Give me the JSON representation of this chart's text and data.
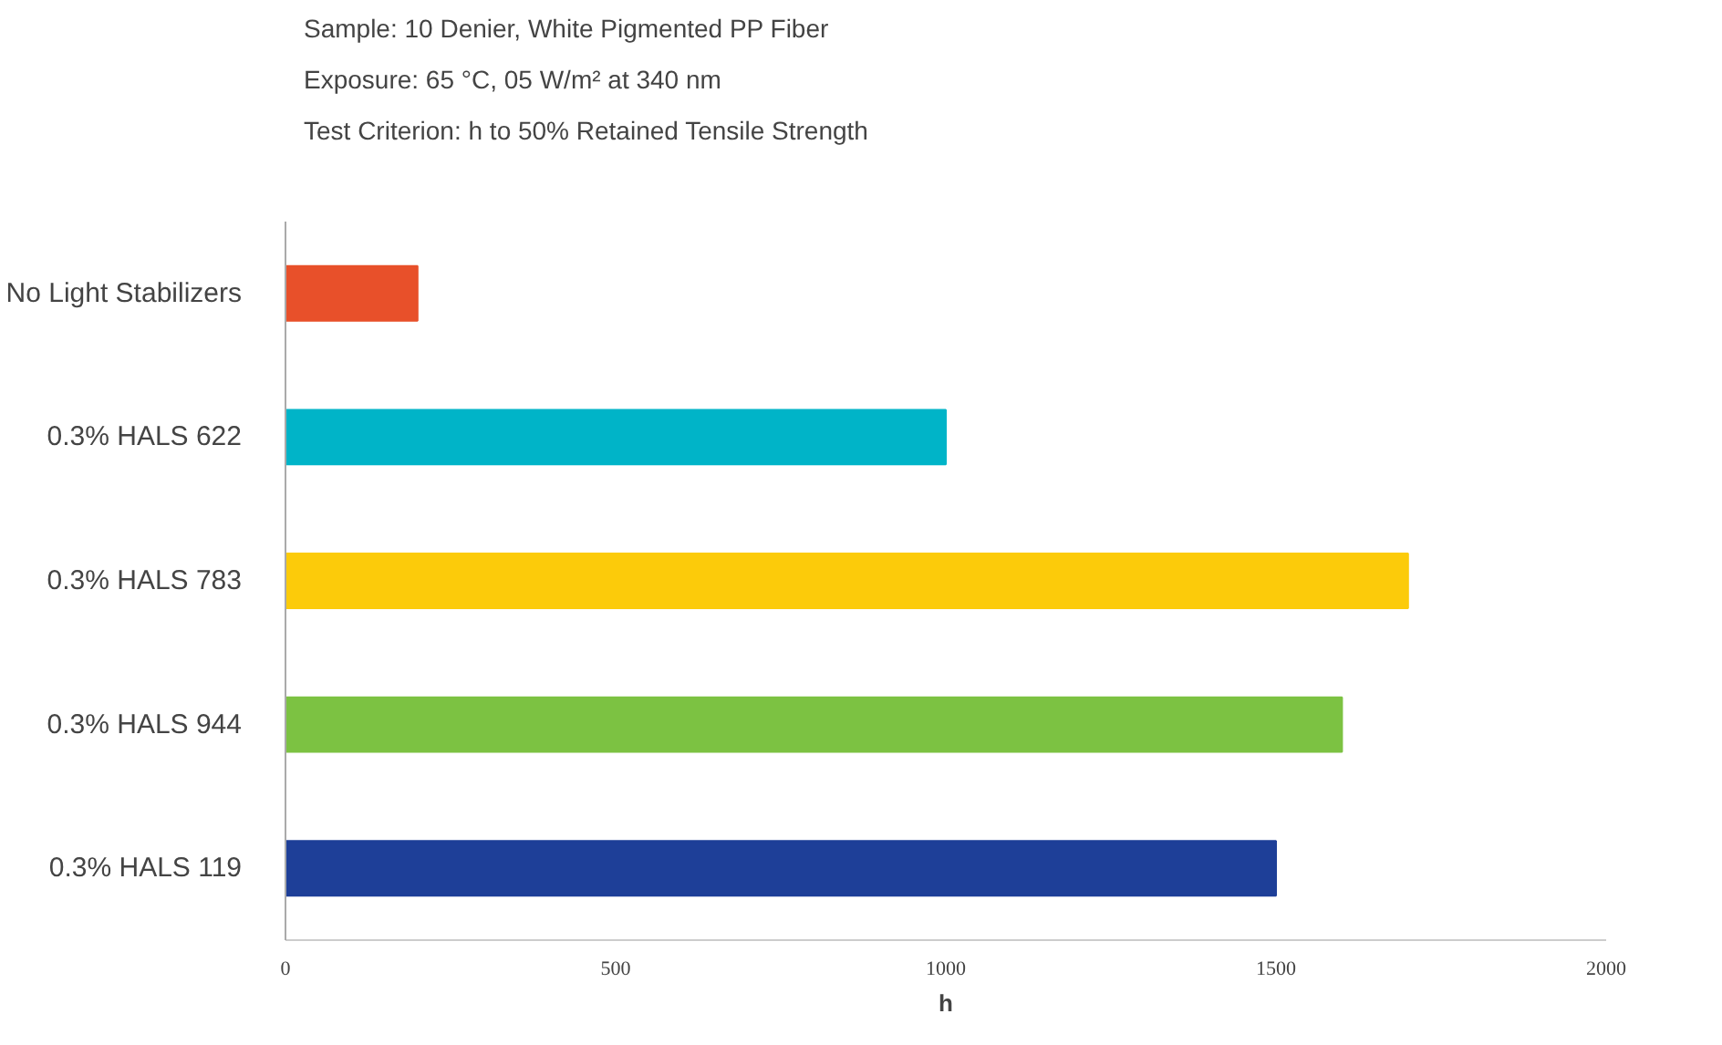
{
  "chart_data": {
    "type": "bar",
    "orientation": "horizontal",
    "title": "Sample: 10 Denier, White Pigmented PP Fiber",
    "subtitle": "Exposure: 65 °C, 05 W/m² at 340 nm",
    "annotations": [
      "Test Criterion: h to 50% Retained Tensile Strength"
    ],
    "xlabel": "h",
    "categories": [
      "No Light Stabilizers",
      "0.3% HALS 622",
      "0.3% HALS 783",
      "0.3% HALS 944",
      "0.3% HALS 119"
    ],
    "values": [
      200,
      1000,
      1700,
      1600,
      1500
    ],
    "colors": [
      "#e8502a",
      "#00b4c8",
      "#fccb0a",
      "#7cc242",
      "#1e3f98"
    ],
    "xlim": [
      0,
      2000
    ],
    "xticks": [
      0,
      500,
      1000,
      1500,
      2000
    ],
    "grid": false
  }
}
